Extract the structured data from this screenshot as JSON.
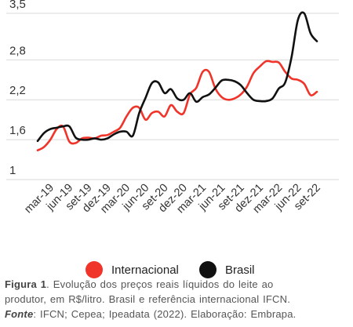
{
  "chart_data": {
    "type": "line",
    "title": "",
    "xlabel": "",
    "ylabel": "",
    "ylim": [
      1,
      3.5
    ],
    "yticks": [
      "1",
      "1,6",
      "2,2",
      "2,8",
      "3,5"
    ],
    "ytick_values": [
      1,
      1.6,
      2.2,
      2.8,
      3.5
    ],
    "grid": "horizontal",
    "legend_position": "bottom",
    "x_tick_labels": [
      "mar-19",
      "jun-19",
      "set-19",
      "dez-19",
      "mar-20",
      "jun-20",
      "set-20",
      "dez-20",
      "mar-21",
      "jun-21",
      "set-21",
      "dez-21",
      "mar-22",
      "jun-22",
      "set-22"
    ],
    "x_tick_index": [
      2,
      5,
      8,
      11,
      14,
      17,
      20,
      23,
      26,
      29,
      32,
      35,
      38,
      41,
      44
    ],
    "x": [
      "jan-19",
      "fev-19",
      "mar-19",
      "abr-19",
      "mai-19",
      "jun-19",
      "jul-19",
      "ago-19",
      "set-19",
      "out-19",
      "nov-19",
      "dez-19",
      "jan-20",
      "fev-20",
      "mar-20",
      "abr-20",
      "mai-20",
      "jun-20",
      "jul-20",
      "ago-20",
      "set-20",
      "out-20",
      "nov-20",
      "dez-20",
      "jan-21",
      "fev-21",
      "mar-21",
      "abr-21",
      "mai-21",
      "jun-21",
      "jul-21",
      "ago-21",
      "set-21",
      "out-21",
      "nov-21",
      "dez-21",
      "jan-22",
      "fev-22",
      "mar-22",
      "abr-22",
      "mai-22",
      "jun-22",
      "jul-22",
      "ago-22",
      "set-22"
    ],
    "series": [
      {
        "name": "Internacional",
        "color": "#f0342a",
        "values": [
          1.44,
          1.49,
          1.6,
          1.76,
          1.8,
          1.57,
          1.55,
          1.62,
          1.63,
          1.62,
          1.66,
          1.67,
          1.72,
          1.78,
          1.95,
          2.08,
          2.08,
          1.9,
          2.0,
          2.02,
          1.95,
          2.12,
          2.02,
          2.0,
          2.28,
          2.38,
          2.62,
          2.62,
          2.37,
          2.24,
          2.2,
          2.22,
          2.28,
          2.4,
          2.6,
          2.7,
          2.78,
          2.77,
          2.76,
          2.62,
          2.52,
          2.5,
          2.44,
          2.27,
          2.32
        ]
      },
      {
        "name": "Brasil",
        "color": "#111111",
        "values": [
          1.58,
          1.7,
          1.76,
          1.78,
          1.8,
          1.8,
          1.63,
          1.6,
          1.6,
          1.62,
          1.6,
          1.62,
          1.68,
          1.72,
          1.72,
          1.66,
          2.0,
          2.23,
          2.45,
          2.46,
          2.3,
          2.36,
          2.22,
          2.2,
          2.3,
          2.17,
          2.24,
          2.28,
          2.38,
          2.49,
          2.5,
          2.48,
          2.42,
          2.3,
          2.2,
          2.18,
          2.18,
          2.22,
          2.37,
          2.46,
          2.84,
          3.4,
          3.5,
          3.2,
          3.08
        ]
      }
    ]
  },
  "caption": {
    "line1_bold": "Figura 1",
    "line1_rest": ". Evolução dos preços reais líquidos do leite ao",
    "line2": "produtor, em R$/litro. Brasil e referência internacional IFCN.",
    "line3_label": "Fonte",
    "line3_rest": ": IFCN; Cepea; Ipeadata (2022). Elaboração: Embrapa."
  }
}
